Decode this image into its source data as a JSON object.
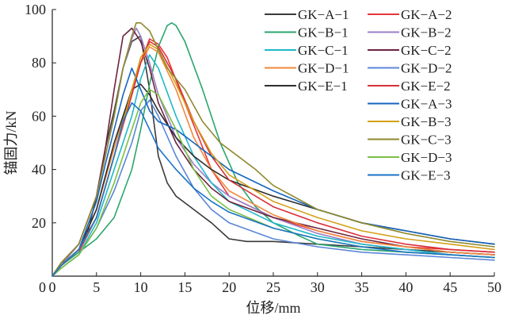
{
  "chart_data": {
    "type": "line",
    "title": "",
    "xlabel": "位移/mm",
    "ylabel": "锚固力/kN",
    "xlim": [
      0,
      50
    ],
    "ylim": [
      0,
      100
    ],
    "xticks": [
      0,
      5,
      10,
      15,
      20,
      25,
      30,
      35,
      40,
      45,
      50
    ],
    "yticks": [
      20,
      40,
      60,
      80,
      100
    ],
    "grid": false,
    "legend_position": "top-right",
    "series": [
      {
        "name": "GK−A−1",
        "color": "#3a3a3a",
        "x": [
          0,
          1,
          2,
          3,
          4,
          5,
          6,
          7,
          8,
          9,
          10,
          11,
          12,
          13,
          14,
          16,
          18,
          20,
          22,
          25,
          30,
          35,
          40,
          45,
          50
        ],
        "y": [
          0,
          5,
          7,
          10,
          16,
          30,
          48,
          62,
          78,
          88,
          90,
          70,
          45,
          35,
          30,
          25,
          20,
          14,
          13,
          13,
          12,
          11,
          10,
          9,
          8
        ]
      },
      {
        "name": "GK−A−2",
        "color": "#e8353a",
        "x": [
          0,
          1,
          3,
          5,
          7,
          9,
          10,
          11,
          12,
          13,
          15,
          18,
          20,
          25,
          30,
          35,
          40,
          45,
          50
        ],
        "y": [
          0,
          4,
          9,
          22,
          45,
          68,
          80,
          89,
          87,
          82,
          65,
          40,
          30,
          22,
          17,
          13,
          11,
          10,
          9
        ]
      },
      {
        "name": "GK−B−1",
        "color": "#2aa66e",
        "x": [
          0,
          1,
          3,
          5,
          7,
          9,
          10,
          11,
          12,
          13,
          13.5,
          14,
          15,
          17,
          19,
          21,
          23,
          25,
          28,
          30,
          35,
          40,
          45,
          50
        ],
        "y": [
          0,
          4,
          9,
          14,
          22,
          40,
          55,
          72,
          86,
          94,
          95,
          94,
          88,
          70,
          50,
          35,
          26,
          20,
          15,
          12,
          10,
          9,
          8,
          7
        ]
      },
      {
        "name": "GK−B−2",
        "color": "#9a7fc7",
        "x": [
          0,
          1,
          3,
          5,
          7,
          8,
          9,
          9.5,
          10,
          11,
          12,
          14,
          16,
          18,
          20,
          25,
          30,
          35,
          40,
          45,
          50
        ],
        "y": [
          0,
          4,
          12,
          30,
          60,
          78,
          89,
          93,
          90,
          80,
          68,
          52,
          42,
          35,
          30,
          22,
          16,
          12,
          10,
          8,
          7
        ]
      },
      {
        "name": "GK−C−1",
        "color": "#1fb8c8",
        "x": [
          0,
          1,
          3,
          5,
          7,
          9,
          10,
          11,
          12,
          14,
          16,
          18,
          20,
          25,
          30,
          35,
          40,
          45,
          50
        ],
        "y": [
          0,
          3,
          8,
          20,
          40,
          60,
          74,
          83,
          78,
          60,
          45,
          35,
          28,
          20,
          15,
          12,
          10,
          8,
          7
        ]
      },
      {
        "name": "GK−C−2",
        "color": "#6e2340",
        "x": [
          0,
          1,
          3,
          5,
          6,
          7,
          8,
          9,
          10,
          11,
          12,
          14,
          16,
          18,
          20,
          25,
          30,
          35,
          40,
          45,
          50
        ],
        "y": [
          0,
          5,
          12,
          30,
          48,
          70,
          90,
          93,
          88,
          78,
          65,
          50,
          40,
          33,
          28,
          22,
          18,
          14,
          11,
          9,
          8
        ]
      },
      {
        "name": "GK−D−1",
        "color": "#f08a3c",
        "x": [
          0,
          1,
          3,
          5,
          7,
          9,
          10,
          11,
          12,
          14,
          16,
          18,
          20,
          25,
          30,
          35,
          40,
          45,
          50
        ],
        "y": [
          0,
          4,
          10,
          25,
          48,
          70,
          80,
          86,
          84,
          70,
          52,
          40,
          32,
          23,
          17,
          13,
          11,
          9,
          8
        ]
      },
      {
        "name": "GK−D−2",
        "color": "#5b86d8",
        "x": [
          0,
          1,
          3,
          5,
          7,
          9,
          10,
          11,
          12,
          14,
          16,
          18,
          20,
          25,
          30,
          35,
          40,
          45,
          50
        ],
        "y": [
          0,
          3,
          8,
          18,
          32,
          50,
          62,
          66,
          60,
          45,
          33,
          25,
          20,
          14,
          11,
          9,
          8,
          7,
          6
        ]
      },
      {
        "name": "GK−E−1",
        "color": "#2e2e2e",
        "x": [
          0,
          1,
          3,
          5,
          7,
          9,
          10,
          11,
          12,
          14,
          16,
          18,
          20,
          25,
          30,
          35,
          40,
          45,
          50
        ],
        "y": [
          0,
          4,
          10,
          25,
          50,
          70,
          72,
          68,
          62,
          52,
          45,
          40,
          36,
          30,
          25,
          20,
          17,
          14,
          12
        ]
      },
      {
        "name": "GK−E−2",
        "color": "#d9303a",
        "x": [
          0,
          1,
          3,
          5,
          7,
          9,
          10,
          11,
          12,
          14,
          16,
          18,
          20,
          25,
          30,
          35,
          40,
          45,
          50
        ],
        "y": [
          0,
          4,
          10,
          22,
          45,
          68,
          80,
          88,
          86,
          74,
          58,
          45,
          36,
          26,
          20,
          15,
          12,
          10,
          9
        ]
      },
      {
        "name": "GK−A−3",
        "color": "#1565c0",
        "x": [
          0,
          1,
          3,
          5,
          6,
          7,
          8,
          9,
          10,
          11,
          12,
          14,
          16,
          18,
          20,
          25,
          30,
          35,
          40,
          45,
          50
        ],
        "y": [
          0,
          4,
          10,
          28,
          42,
          55,
          68,
          78,
          70,
          62,
          58,
          55,
          50,
          45,
          40,
          32,
          25,
          20,
          17,
          14,
          12
        ]
      },
      {
        "name": "GK−B−3",
        "color": "#d4a017",
        "x": [
          0,
          1,
          3,
          5,
          7,
          9,
          10,
          11,
          12,
          14,
          16,
          18,
          20,
          25,
          30,
          35,
          40,
          45,
          50
        ],
        "y": [
          0,
          4,
          10,
          22,
          45,
          70,
          82,
          87,
          85,
          72,
          58,
          46,
          38,
          28,
          22,
          17,
          14,
          12,
          10
        ]
      },
      {
        "name": "GK−C−3",
        "color": "#8f8a2f",
        "x": [
          0,
          1,
          3,
          5,
          7,
          8,
          9,
          9.5,
          10,
          11,
          12,
          13,
          15,
          17,
          19,
          21,
          23,
          25,
          30,
          35,
          40,
          45,
          50
        ],
        "y": [
          0,
          5,
          12,
          30,
          60,
          78,
          90,
          95,
          95,
          92,
          85,
          78,
          70,
          58,
          50,
          45,
          40,
          34,
          25,
          20,
          16,
          13,
          11
        ]
      },
      {
        "name": "GK−D−3",
        "color": "#7bc043",
        "x": [
          0,
          1,
          3,
          5,
          7,
          9,
          10,
          11,
          12,
          14,
          16,
          18,
          20,
          25,
          30,
          35,
          40,
          45,
          50
        ],
        "y": [
          0,
          3,
          8,
          18,
          35,
          55,
          65,
          70,
          68,
          55,
          40,
          30,
          25,
          18,
          14,
          11,
          9,
          8,
          7
        ]
      },
      {
        "name": "GK−E−3",
        "color": "#1a73c7",
        "x": [
          0,
          1,
          3,
          5,
          7,
          8,
          9,
          10,
          11,
          12,
          14,
          16,
          18,
          20,
          25,
          30,
          35,
          40,
          45,
          50
        ],
        "y": [
          0,
          4,
          10,
          22,
          45,
          58,
          65,
          62,
          55,
          48,
          40,
          33,
          28,
          24,
          18,
          14,
          11,
          9,
          8,
          7
        ]
      }
    ]
  }
}
